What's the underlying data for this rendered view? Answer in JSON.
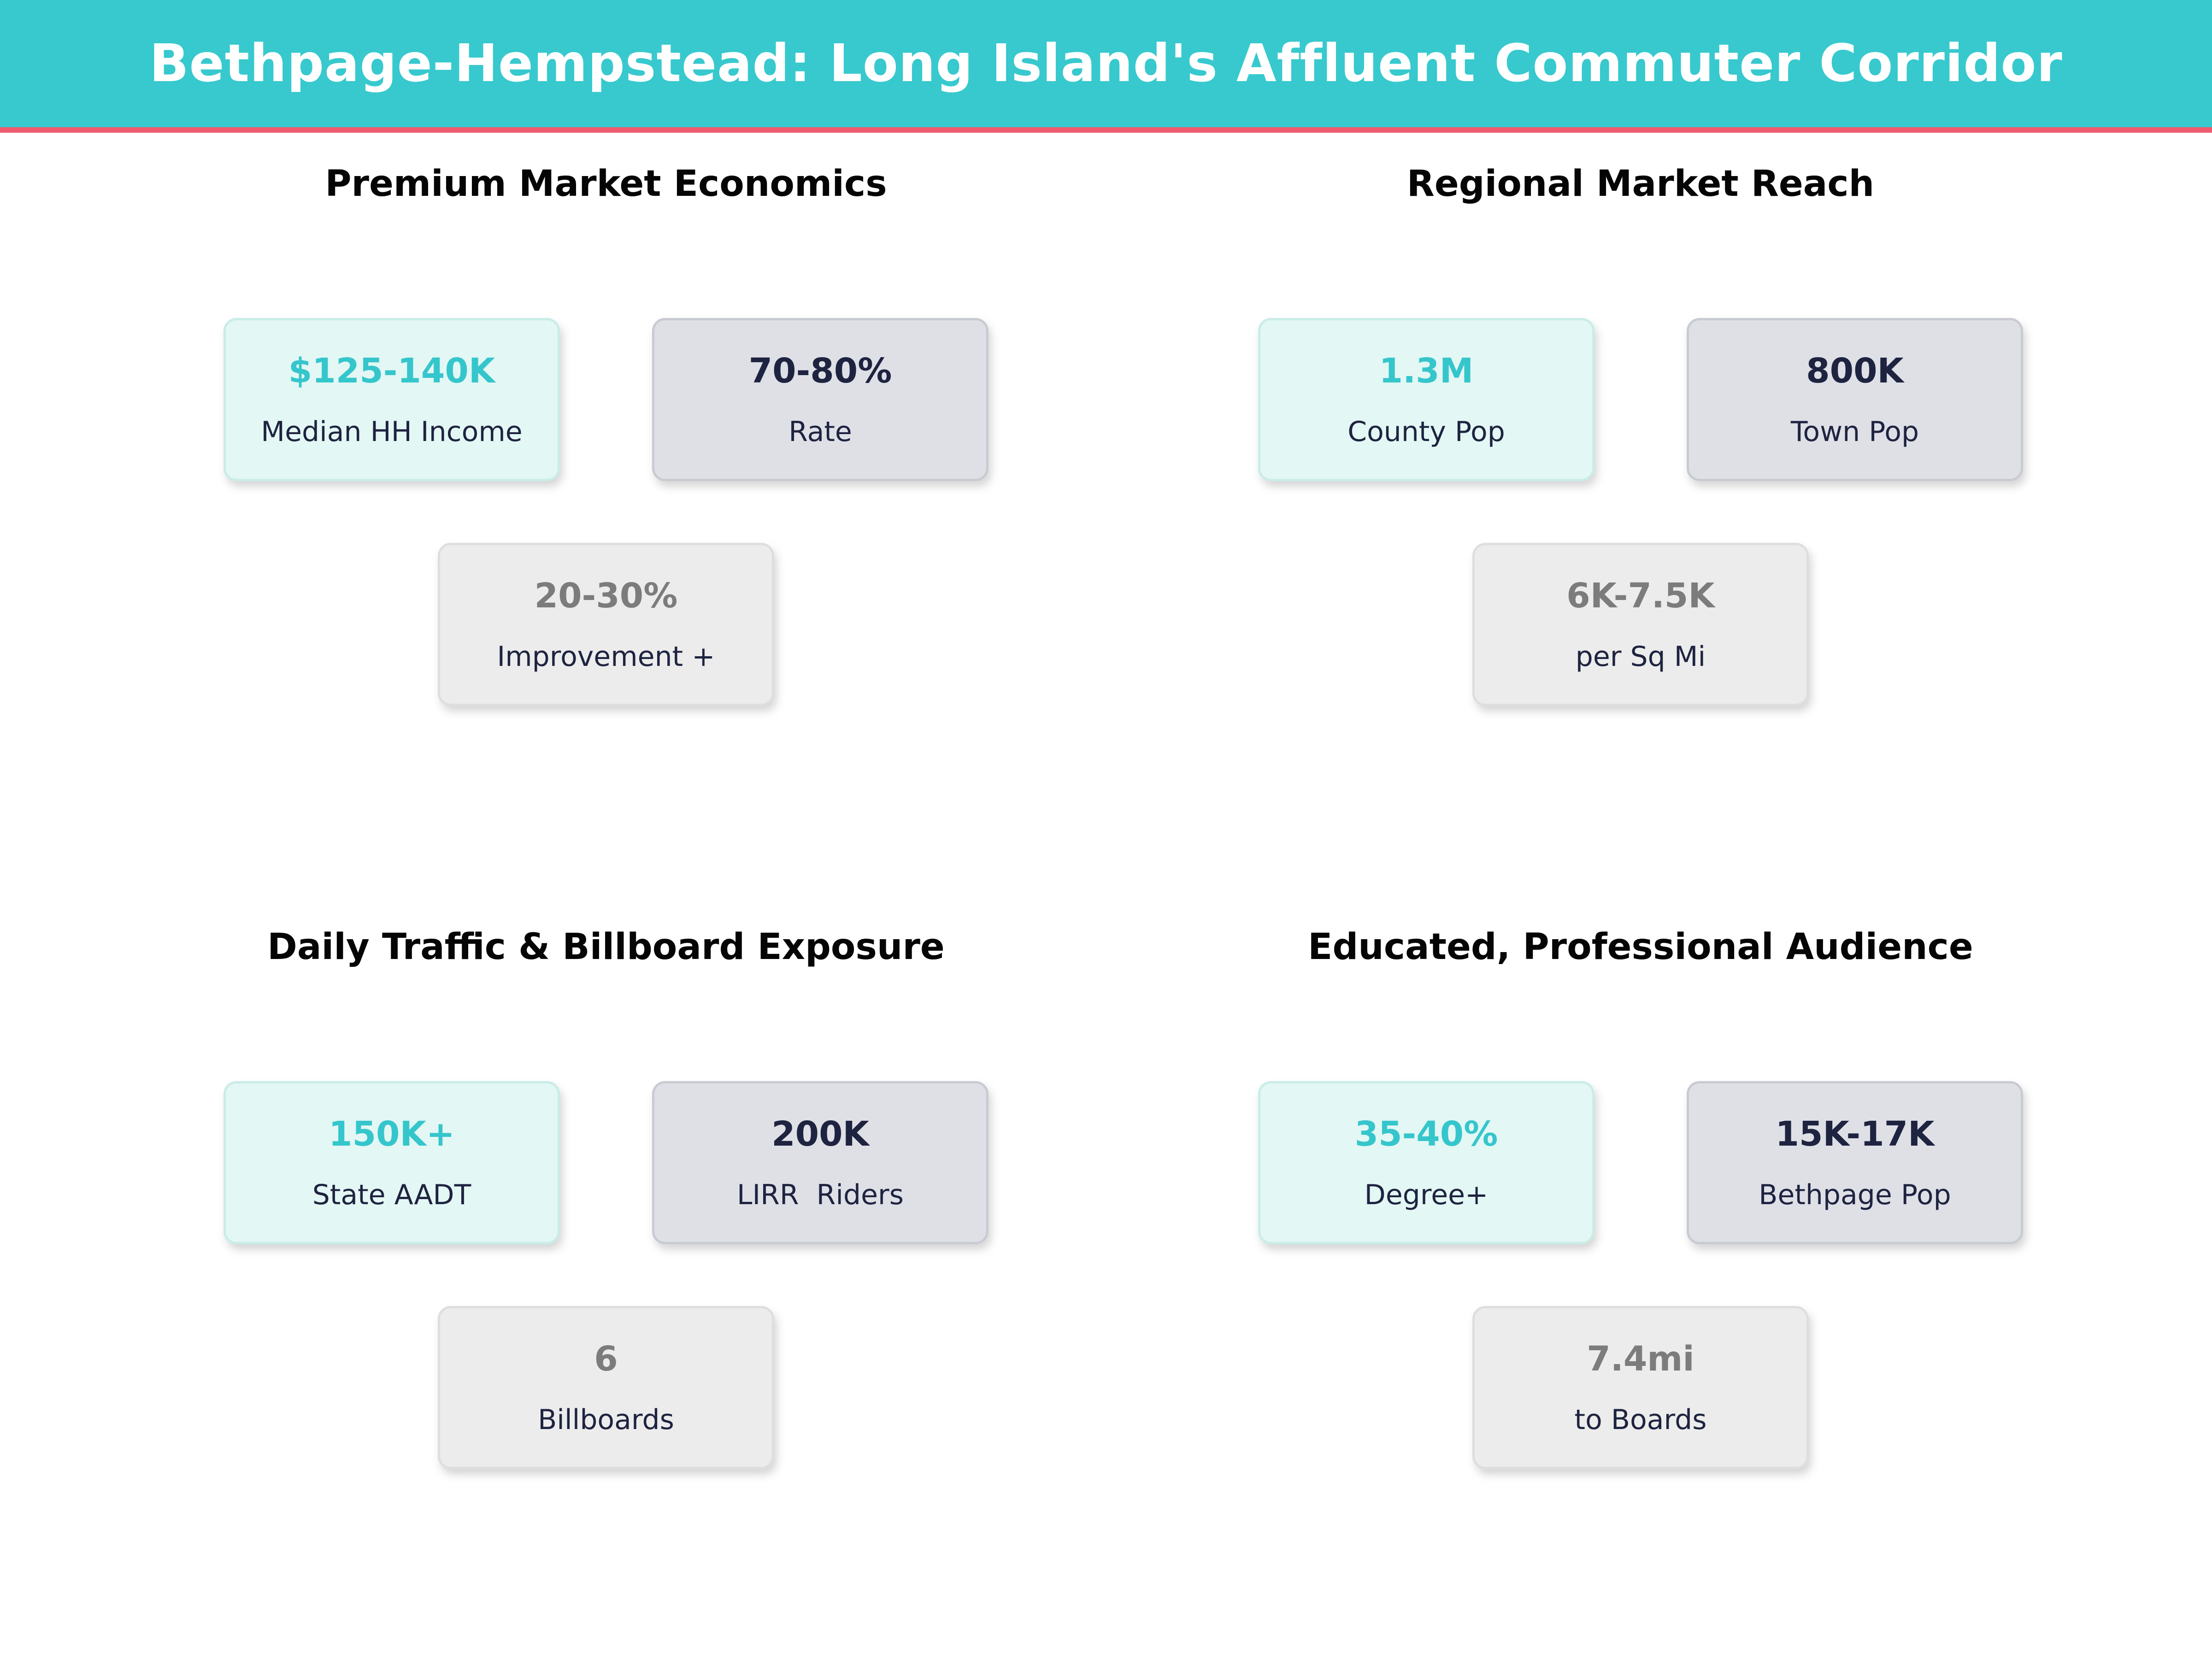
{
  "header": {
    "title": "Bethpage-Hempstead: Long Island's Affluent Commuter Corridor"
  },
  "colors": {
    "teal": "#37C9CE",
    "pink": "#EF5A6E",
    "navy": "#1E2340",
    "accent": "#35C6CC",
    "mint-bg": "#E3F7F4",
    "mint-border": "#C9EDE8",
    "slate-bg": "#DEE0E6",
    "slate-border": "#C9CBD3",
    "neutral-bg": "#ECECEC",
    "neutral-border": "#DEDEDE",
    "muted": "#7C7C7C",
    "title": "#050505"
  },
  "sections": [
    {
      "title": "Premium Market Economics",
      "cards": [
        {
          "value": "$125-140K",
          "label": "Median HH Income"
        },
        {
          "value": "70-80%",
          "label": "Rate"
        },
        {
          "value": "20-30%",
          "label": "Improvement +"
        }
      ]
    },
    {
      "title": "Regional Market Reach",
      "cards": [
        {
          "value": "1.3M",
          "label": "County Pop"
        },
        {
          "value": "800K",
          "label": "Town Pop"
        },
        {
          "value": "6K-7.5K",
          "label": "per Sq Mi"
        }
      ]
    },
    {
      "title": "Daily Traffic & Billboard Exposure",
      "cards": [
        {
          "value": "150K+",
          "label": "State AADT"
        },
        {
          "value": "200K",
          "label": "LIRR  Riders"
        },
        {
          "value": "6",
          "label": "Billboards"
        }
      ]
    },
    {
      "title": "Educated, Professional Audience",
      "cards": [
        {
          "value": "35-40%",
          "label": "Degree+"
        },
        {
          "value": "15K-17K",
          "label": "Bethpage Pop"
        },
        {
          "value": "7.4mi",
          "label": "to Boards"
        }
      ]
    }
  ],
  "chart_data": {
    "type": "table",
    "title": "Bethpage-Hempstead: Long Island's Affluent Commuter Corridor",
    "groups": [
      {
        "title": "Premium Market Economics",
        "stats": [
          {
            "value": "$125-140K",
            "label": "Median HH Income"
          },
          {
            "value": "70-80%",
            "label": "Rate"
          },
          {
            "value": "20-30%",
            "label": "Improvement +"
          }
        ]
      },
      {
        "title": "Regional Market Reach",
        "stats": [
          {
            "value": "1.3M",
            "label": "County Pop"
          },
          {
            "value": "800K",
            "label": "Town Pop"
          },
          {
            "value": "6K-7.5K",
            "label": "per Sq Mi"
          }
        ]
      },
      {
        "title": "Daily Traffic & Billboard Exposure",
        "stats": [
          {
            "value": "150K+",
            "label": "State AADT"
          },
          {
            "value": "200K",
            "label": "LIRR  Riders"
          },
          {
            "value": "6",
            "label": "Billboards"
          }
        ]
      },
      {
        "title": "Educated, Professional Audience",
        "stats": [
          {
            "value": "35-40%",
            "label": "Degree+"
          },
          {
            "value": "15K-17K",
            "label": "Bethpage Pop"
          },
          {
            "value": "7.4mi",
            "label": "to Boards"
          }
        ]
      }
    ],
    "layout": {
      "grid": "2x2",
      "cards_per_group": 3,
      "highlight_card": "mint (first card of each group)"
    }
  }
}
